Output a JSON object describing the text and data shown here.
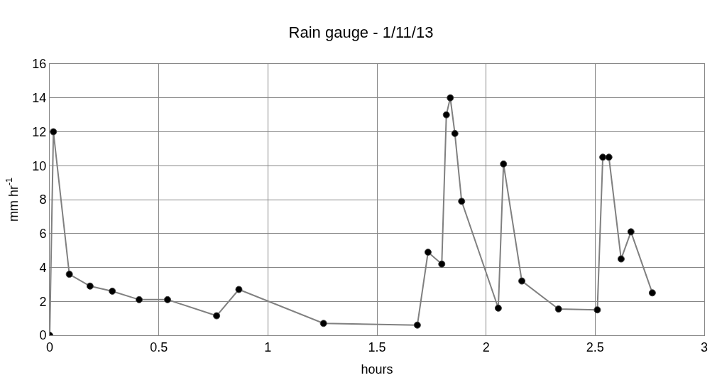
{
  "chart_data": {
    "type": "line",
    "title": "Rain gauge - 1/11/13",
    "xlabel": "hours",
    "ylabel": "mm hr$^{-1}$",
    "x": [
      0,
      0.017,
      0.09,
      0.185,
      0.287,
      0.41,
      0.54,
      0.765,
      0.867,
      1.255,
      1.685,
      1.734,
      1.797,
      1.818,
      1.836,
      1.857,
      1.888,
      2.056,
      2.08,
      2.164,
      2.332,
      2.51,
      2.535,
      2.563,
      2.619,
      2.664,
      2.762
    ],
    "series": [
      {
        "color": "#808080",
        "values": [
          0,
          12.0,
          3.6,
          2.9,
          2.6,
          2.1,
          2.1,
          1.15,
          2.7,
          0.7,
          0.6,
          4.9,
          4.2,
          13.0,
          14.0,
          11.9,
          7.9,
          1.6,
          10.1,
          3.2,
          1.55,
          1.5,
          10.5,
          10.5,
          4.5,
          6.1,
          2.5
        ]
      }
    ],
    "xlim": [
      0,
      3
    ],
    "xticks": [
      0,
      0.5,
      1,
      1.5,
      2,
      2.5,
      3
    ],
    "ylim": [
      0,
      16
    ],
    "yticks": [
      0,
      2,
      4,
      6,
      8,
      10,
      12,
      14,
      16
    ],
    "grid": true,
    "legend": false,
    "marker": "circle",
    "line_style": "solid"
  }
}
